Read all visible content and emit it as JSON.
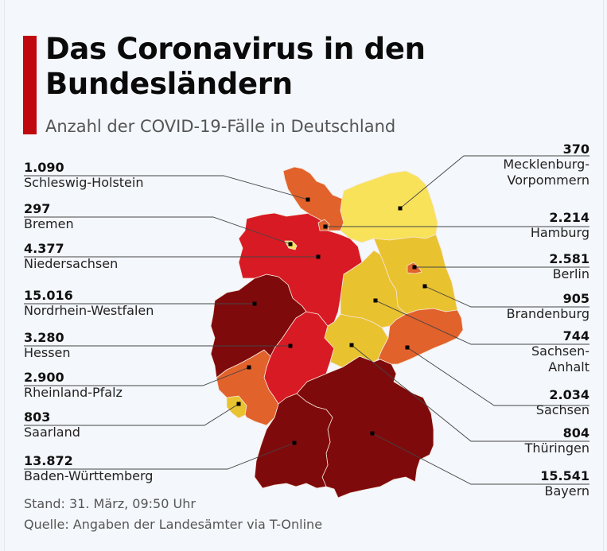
{
  "title_line1": "Das Coronavirus in den",
  "title_line2": "Bundesländern",
  "subtitle": "Anzahl der COVID-19-Fälle in Deutschland",
  "colors": {
    "accent": "#c0090f",
    "very_high": "#7f0a0c",
    "high": "#d81a24",
    "medium": "#e2622c",
    "low": "#e9c22f",
    "very_low": "#f8e25a",
    "border": "#f4e6d8",
    "leader": "#444444"
  },
  "states": [
    {
      "id": "sh",
      "name": "Schleswig-Holstein",
      "value": "1.090",
      "cases": 1090,
      "level": "medium"
    },
    {
      "id": "hb",
      "name": "Bremen",
      "value": "297",
      "cases": 297,
      "level": "very_low"
    },
    {
      "id": "ni",
      "name": "Niedersachsen",
      "value": "4.377",
      "cases": 4377,
      "level": "high"
    },
    {
      "id": "nw",
      "name": "Nordrhein-Westfalen",
      "value": "15.016",
      "cases": 15016,
      "level": "very_high"
    },
    {
      "id": "he",
      "name": "Hessen",
      "value": "3.280",
      "cases": 3280,
      "level": "high"
    },
    {
      "id": "rp",
      "name": "Rheinland-Pfalz",
      "value": "2.900",
      "cases": 2900,
      "level": "medium"
    },
    {
      "id": "sl",
      "name": "Saarland",
      "value": "803",
      "cases": 803,
      "level": "low"
    },
    {
      "id": "bw",
      "name": "Baden-Württemberg",
      "value": "13.872",
      "cases": 13872,
      "level": "very_high"
    },
    {
      "id": "mv",
      "name": "Mecklenburg-",
      "name2": "Vorpommern",
      "value": "370",
      "cases": 370,
      "level": "very_low"
    },
    {
      "id": "hh",
      "name": "Hamburg",
      "value": "2.214",
      "cases": 2214,
      "level": "medium"
    },
    {
      "id": "be",
      "name": "Berlin",
      "value": "2.581",
      "cases": 2581,
      "level": "medium"
    },
    {
      "id": "bb",
      "name": "Brandenburg",
      "value": "905",
      "cases": 905,
      "level": "low"
    },
    {
      "id": "st",
      "name": "Sachsen-",
      "name2": "Anhalt",
      "value": "744",
      "cases": 744,
      "level": "low"
    },
    {
      "id": "sn",
      "name": "Sachsen",
      "value": "2.034",
      "cases": 2034,
      "level": "medium"
    },
    {
      "id": "th",
      "name": "Thüringen",
      "value": "804",
      "cases": 804,
      "level": "low"
    },
    {
      "id": "by",
      "name": "Bayern",
      "value": "15.541",
      "cases": 15541,
      "level": "very_high"
    }
  ],
  "footer": {
    "stand": "Stand: 31. März, 09:50 Uhr",
    "source": "Quelle: Angaben der Landesämter via T-Online"
  }
}
